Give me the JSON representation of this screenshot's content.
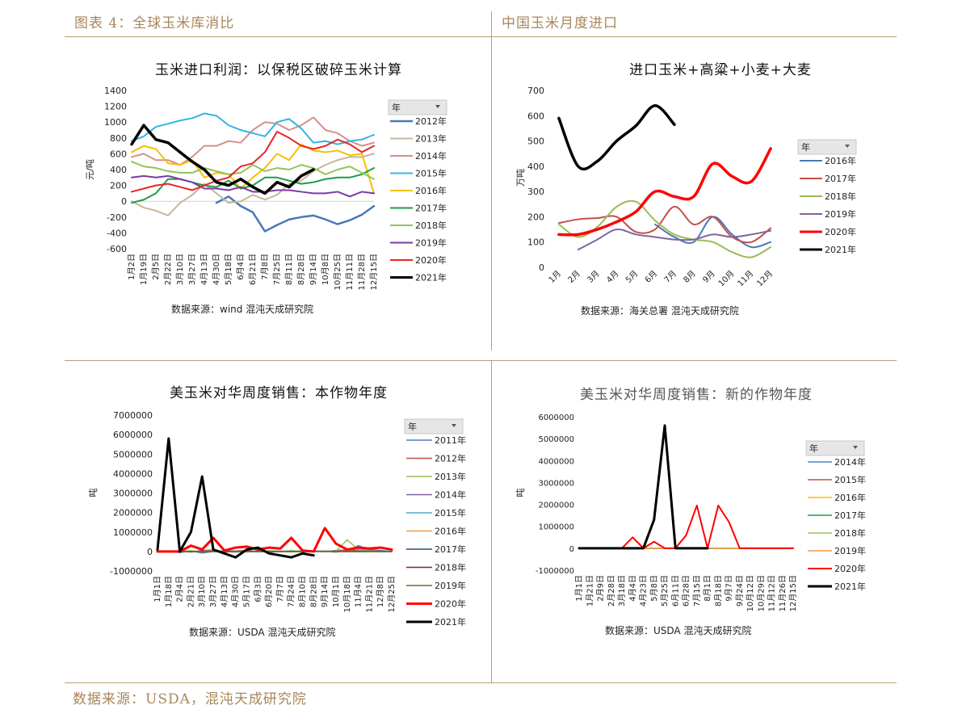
{
  "header": {
    "left": "图表 4：全球玉米库消比",
    "right": "中国玉米月度进口"
  },
  "footer": "数据来源：USDA，混沌天成研究院",
  "colors": {
    "accent": "#a8865a",
    "rule": "#b8a07a"
  },
  "chart_data": [
    {
      "type": "line",
      "title": "玉米进口利润：以保税区破碎玉米计算",
      "ylabel": "元/吨",
      "source": "数据来源：wind 混沌天成研究院",
      "ylim": [
        -600,
        1400
      ],
      "yticks": [
        1400,
        1200,
        1000,
        800,
        600,
        400,
        200,
        0,
        -200,
        -400,
        -600
      ],
      "categories": [
        "1月2日",
        "1月19日",
        "2月5日",
        "2月22日",
        "3月10日",
        "3月27日",
        "4月13日",
        "4月30日",
        "5月18日",
        "6月4日",
        "6月21日",
        "7月8日",
        "7月25日",
        "8月11日",
        "8月28日",
        "9月14日",
        "10月8日",
        "10月25日",
        "11月11日",
        "11月28日",
        "12月15日"
      ],
      "legend_title": "年",
      "series": [
        {
          "name": "2012年",
          "color": "#4a78b5",
          "width": 2.5,
          "values": [
            null,
            null,
            null,
            null,
            null,
            null,
            null,
            -20,
            60,
            -60,
            -140,
            -380,
            -300,
            -230,
            -200,
            -180,
            -230,
            -290,
            -240,
            -170,
            -60
          ]
        },
        {
          "name": "2013年",
          "color": "#c6b69a",
          "width": 2,
          "values": [
            0,
            -80,
            -120,
            -180,
            -20,
            80,
            220,
            100,
            -20,
            0,
            80,
            20,
            80,
            220,
            260,
            380,
            460,
            520,
            560,
            560,
            600
          ]
        },
        {
          "name": "2014年",
          "color": "#d4908c",
          "width": 2,
          "values": [
            560,
            600,
            520,
            520,
            460,
            560,
            700,
            700,
            760,
            740,
            900,
            1000,
            980,
            900,
            960,
            1060,
            900,
            860,
            760,
            700,
            740
          ]
        },
        {
          "name": "2015年",
          "color": "#33b4e4",
          "width": 2,
          "values": [
            760,
            820,
            940,
            980,
            1020,
            1050,
            1110,
            1080,
            960,
            900,
            860,
            820,
            1000,
            1040,
            920,
            740,
            760,
            720,
            760,
            780,
            840
          ]
        },
        {
          "name": "2016年",
          "color": "#f5c000",
          "width": 2,
          "values": [
            620,
            700,
            660,
            480,
            460,
            520,
            300,
            360,
            340,
            160,
            300,
            420,
            600,
            520,
            720,
            640,
            620,
            640,
            580,
            600,
            100
          ]
        },
        {
          "name": "2017年",
          "color": "#1e9c4a",
          "width": 2,
          "values": [
            -20,
            20,
            100,
            280,
            280,
            240,
            200,
            180,
            260,
            160,
            200,
            300,
            300,
            260,
            220,
            240,
            280,
            300,
            300,
            340,
            420
          ]
        },
        {
          "name": "2018年",
          "color": "#92c45a",
          "width": 2,
          "values": [
            500,
            440,
            420,
            380,
            360,
            360,
            420,
            380,
            340,
            360,
            460,
            380,
            420,
            400,
            460,
            420,
            340,
            400,
            440,
            360,
            280
          ]
        },
        {
          "name": "2019年",
          "color": "#7b3aa3",
          "width": 2,
          "values": [
            300,
            320,
            300,
            320,
            280,
            240,
            160,
            160,
            140,
            180,
            120,
            120,
            140,
            140,
            120,
            100,
            100,
            120,
            60,
            120,
            100
          ]
        },
        {
          "name": "2020年",
          "color": "#e8262a",
          "width": 2,
          "values": [
            120,
            160,
            200,
            220,
            180,
            140,
            200,
            260,
            300,
            440,
            480,
            620,
            880,
            800,
            700,
            660,
            700,
            780,
            720,
            620,
            700
          ]
        },
        {
          "name": "2021年",
          "color": "#000000",
          "width": 3.5,
          "values": [
            720,
            960,
            780,
            740,
            620,
            500,
            400,
            240,
            200,
            280,
            180,
            100,
            240,
            180,
            320,
            400,
            null,
            null,
            null,
            null,
            null
          ]
        }
      ]
    },
    {
      "type": "line",
      "title": "进口玉米+高粱+小麦+大麦",
      "ylabel": "万吨",
      "source": "数据来源：海关总署 混沌天成研究院",
      "ylim": [
        0,
        700
      ],
      "yticks": [
        700,
        600,
        500,
        400,
        300,
        200,
        100,
        0
      ],
      "categories": [
        "1月",
        "2月",
        "3月",
        "4月",
        "5月",
        "6月",
        "7月",
        "8月",
        "9月",
        "10月",
        "11月",
        "12月"
      ],
      "legend_title": "年",
      "series": [
        {
          "name": "2016年",
          "color": "#4a78b5",
          "width": 2,
          "values": [
            null,
            null,
            null,
            null,
            null,
            170,
            120,
            100,
            200,
            130,
            80,
            100
          ]
        },
        {
          "name": "2017年",
          "color": "#c0504d",
          "width": 2,
          "values": [
            175,
            190,
            195,
            200,
            140,
            150,
            240,
            170,
            200,
            120,
            100,
            155
          ]
        },
        {
          "name": "2018年",
          "color": "#9bbb59",
          "width": 2,
          "values": [
            170,
            120,
            160,
            240,
            260,
            185,
            130,
            110,
            100,
            60,
            40,
            80
          ]
        },
        {
          "name": "2019年",
          "color": "#8064a2",
          "width": 2,
          "values": [
            null,
            70,
            110,
            150,
            130,
            120,
            110,
            110,
            130,
            120,
            130,
            145
          ]
        },
        {
          "name": "2020年",
          "color": "#ff0000",
          "width": 3.5,
          "values": [
            130,
            130,
            150,
            180,
            220,
            300,
            280,
            280,
            410,
            360,
            340,
            470
          ]
        },
        {
          "name": "2021年",
          "color": "#000000",
          "width": 3.5,
          "values": [
            590,
            400,
            420,
            500,
            560,
            640,
            565,
            null,
            null,
            null,
            null,
            null
          ]
        }
      ]
    },
    {
      "type": "line",
      "title": "美玉米对华周度销售：本作物年度",
      "ylabel": "吨",
      "source": "数据来源：USDA 混沌天成研究院",
      "ylim": [
        -1000000,
        7000000
      ],
      "yticks": [
        7000000,
        6000000,
        5000000,
        4000000,
        3000000,
        2000000,
        1000000,
        0,
        -1000000
      ],
      "categories": [
        "1月1日",
        "1月18日",
        "2月4日",
        "2月21日",
        "3月10日",
        "3月27日",
        "4月13日",
        "4月30日",
        "5月17日",
        "6月3日",
        "6月20日",
        "7月7日",
        "7月24日",
        "8月10日",
        "8月28日",
        "9月14日",
        "10月1日",
        "10月18日",
        "11月4日",
        "11月21日",
        "12月8日",
        "12月25日"
      ],
      "legend_title": "年",
      "series": [
        {
          "name": "2011年",
          "color": "#4f81bd",
          "width": 1.5,
          "values": [
            0,
            20000,
            -50000,
            30000,
            -80000,
            10000,
            0,
            -30000,
            20000,
            10000,
            -20000,
            0,
            0,
            10000,
            0,
            20000,
            -30000,
            50000,
            300000,
            100000,
            50000,
            0
          ]
        },
        {
          "name": "2012年",
          "color": "#c0504d",
          "width": 1.5,
          "values": [
            0,
            10000,
            20000,
            -30000,
            50000,
            80000,
            -40000,
            20000,
            60000,
            -20000,
            30000,
            10000,
            -20000,
            40000,
            30000,
            0,
            50000,
            80000,
            60000,
            120000,
            0,
            0
          ]
        },
        {
          "name": "2013年",
          "color": "#9bbb59",
          "width": 1.5,
          "values": [
            0,
            -30000,
            10000,
            40000,
            -20000,
            30000,
            20000,
            0,
            -10000,
            30000,
            20000,
            0,
            40000,
            10000,
            0,
            30000,
            20000,
            600000,
            100000,
            50000,
            0,
            0
          ]
        },
        {
          "name": "2014年",
          "color": "#8064a2",
          "width": 1.5,
          "values": [
            0,
            20000,
            -20000,
            10000,
            -50000,
            0,
            30000,
            20000,
            -20000,
            0,
            10000,
            20000,
            0,
            -10000,
            20000,
            10000,
            0,
            0,
            20000,
            30000,
            0,
            0
          ]
        },
        {
          "name": "2015年",
          "color": "#4bacc6",
          "width": 1.5,
          "values": [
            0,
            0,
            10000,
            -10000,
            20000,
            0,
            0,
            10000,
            0,
            -10000,
            0,
            0,
            10000,
            0,
            0,
            20000,
            10000,
            0,
            -10000,
            0,
            0,
            0
          ]
        },
        {
          "name": "2016年",
          "color": "#f79646",
          "width": 1.5,
          "values": [
            0,
            0,
            0,
            10000,
            0,
            20000,
            0,
            0,
            -10000,
            0,
            0,
            10000,
            0,
            0,
            0,
            10000,
            0,
            0,
            0,
            10000,
            0,
            0
          ]
        },
        {
          "name": "2017年",
          "color": "#2c4d75",
          "width": 1.5,
          "values": [
            0,
            0,
            0,
            0,
            10000,
            0,
            0,
            0,
            0,
            10000,
            0,
            0,
            0,
            0,
            0,
            0,
            10000,
            0,
            0,
            0,
            0,
            0
          ]
        },
        {
          "name": "2018年",
          "color": "#772c2a",
          "width": 1.5,
          "values": [
            0,
            10000,
            0,
            0,
            0,
            0,
            0,
            10000,
            0,
            0,
            0,
            0,
            0,
            0,
            10000,
            0,
            0,
            0,
            0,
            0,
            0,
            0
          ]
        },
        {
          "name": "2019年",
          "color": "#5f7530",
          "width": 1.5,
          "values": [
            0,
            0,
            0,
            0,
            0,
            10000,
            0,
            0,
            0,
            0,
            0,
            0,
            10000,
            0,
            0,
            0,
            0,
            0,
            0,
            0,
            0,
            0
          ]
        },
        {
          "name": "2020年",
          "color": "#ff0000",
          "width": 3,
          "values": [
            0,
            0,
            0,
            300000,
            100000,
            700000,
            50000,
            200000,
            250000,
            100000,
            200000,
            150000,
            700000,
            50000,
            0,
            1200000,
            400000,
            100000,
            200000,
            150000,
            200000,
            100000
          ]
        },
        {
          "name": "2021年",
          "color": "#000000",
          "width": 3,
          "values": [
            100000,
            5800000,
            0,
            1000000,
            3850000,
            100000,
            -100000,
            -300000,
            100000,
            200000,
            -100000,
            -200000,
            -300000,
            -100000,
            -200000,
            null,
            null,
            null,
            null,
            null,
            null,
            null
          ]
        }
      ]
    },
    {
      "type": "line",
      "title": "美玉米对华周度销售：新的作物年度",
      "ylabel": "吨",
      "source": "数据来源：USDA 混沌天成研究院",
      "ylim": [
        -1000000,
        6000000
      ],
      "yticks": [
        6000000,
        5000000,
        4000000,
        3000000,
        2000000,
        1000000,
        0,
        -1000000
      ],
      "categories": [
        "1月1日",
        "1月21日",
        "2月9日",
        "2月28日",
        "3月18日",
        "4月4日",
        "4月23日",
        "5月8日",
        "5月25日",
        "6月11日",
        "6月28日",
        "7月15日",
        "8月1日",
        "8月18日",
        "9月7日",
        "9月24日",
        "10月12日",
        "10月29日",
        "11月12日",
        "11月26日",
        "12月15日"
      ],
      "legend_title": "年",
      "series": [
        {
          "name": "2014年",
          "color": "#4f81bd",
          "width": 1.5,
          "values": [
            0,
            0,
            0,
            0,
            0,
            0,
            0,
            0,
            0,
            0,
            0,
            0,
            0,
            0,
            0,
            0,
            0,
            0,
            0,
            0,
            0
          ]
        },
        {
          "name": "2015年",
          "color": "#c0504d",
          "width": 1.5,
          "values": [
            0,
            0,
            0,
            0,
            0,
            0,
            0,
            0,
            0,
            0,
            0,
            0,
            0,
            0,
            0,
            0,
            0,
            0,
            0,
            0,
            0
          ]
        },
        {
          "name": "2016年",
          "color": "#f5c000",
          "width": 1.5,
          "values": [
            0,
            0,
            0,
            0,
            0,
            0,
            0,
            0,
            0,
            0,
            0,
            0,
            0,
            0,
            0,
            0,
            0,
            0,
            0,
            0,
            0
          ]
        },
        {
          "name": "2017年",
          "color": "#1e9c4a",
          "width": 1.5,
          "values": [
            0,
            0,
            0,
            0,
            0,
            0,
            0,
            0,
            0,
            0,
            0,
            0,
            0,
            0,
            0,
            0,
            0,
            0,
            0,
            0,
            0
          ]
        },
        {
          "name": "2018年",
          "color": "#92c45a",
          "width": 1.5,
          "values": [
            0,
            0,
            0,
            0,
            0,
            0,
            0,
            0,
            0,
            0,
            0,
            0,
            0,
            0,
            0,
            0,
            0,
            0,
            0,
            0,
            0
          ]
        },
        {
          "name": "2019年",
          "color": "#f79646",
          "width": 1.5,
          "values": [
            0,
            0,
            0,
            0,
            0,
            0,
            0,
            0,
            0,
            0,
            0,
            0,
            0,
            0,
            0,
            0,
            0,
            0,
            0,
            0,
            0
          ]
        },
        {
          "name": "2020年",
          "color": "#ff0000",
          "width": 2,
          "values": [
            0,
            0,
            0,
            0,
            0,
            500000,
            0,
            300000,
            0,
            0,
            600000,
            1950000,
            0,
            1950000,
            1200000,
            0,
            0,
            0,
            0,
            0,
            0
          ]
        },
        {
          "name": "2021年",
          "color": "#000000",
          "width": 3,
          "values": [
            0,
            0,
            0,
            0,
            0,
            0,
            0,
            1300000,
            5600000,
            0,
            0,
            0,
            0,
            null,
            null,
            null,
            null,
            null,
            null,
            null,
            null
          ]
        }
      ]
    }
  ]
}
